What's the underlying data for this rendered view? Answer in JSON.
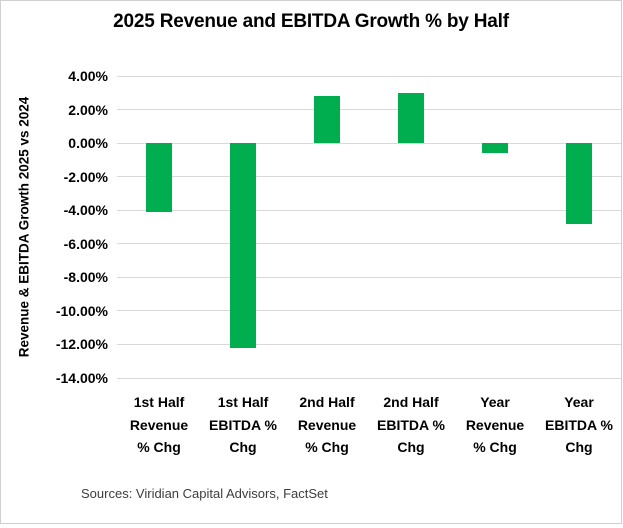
{
  "window": {
    "background": "#ffffff",
    "frame_border_color": "#cfcfcf"
  },
  "chart_data": {
    "type": "bar",
    "title": "2025 Revenue and EBITDA Growth % by Half",
    "ylabel": "Revenue & EBITDA Growth 2025 vs 2024",
    "xlabel": "",
    "categories": [
      "1st Half Revenue % Chg",
      "1st Half EBITDA % Chg",
      "2nd Half Revenue % Chg",
      "2nd Half EBITDA % Chg",
      "Year Revenue % Chg",
      "Year EBITDA % Chg"
    ],
    "category_label_lines": [
      [
        "1st Half",
        "Revenue",
        "% Chg"
      ],
      [
        "1st Half",
        "EBITDA %",
        "Chg"
      ],
      [
        "2nd Half",
        "Revenue",
        "% Chg"
      ],
      [
        "2nd Half",
        "EBITDA %",
        "Chg"
      ],
      [
        "Year",
        "Revenue",
        "% Chg"
      ],
      [
        "Year",
        "EBITDA %",
        "Chg"
      ]
    ],
    "values": [
      -4.1,
      -12.2,
      2.8,
      3.0,
      -0.6,
      -4.8
    ],
    "unit": "%",
    "ylim": [
      -14,
      4
    ],
    "ytick_step": 2,
    "ytick_labels": [
      "4.00%",
      "2.00%",
      "0.00%",
      "-2.00%",
      "-4.00%",
      "-6.00%",
      "-8.00%",
      "-10.00%",
      "-12.00%",
      "-14.00%"
    ],
    "grid": true,
    "legend": false,
    "bar_color": "#00AE50",
    "gridline_color": "#D9D9D9",
    "source": "Sources: Viridian Capital Advisors, FactSet"
  }
}
